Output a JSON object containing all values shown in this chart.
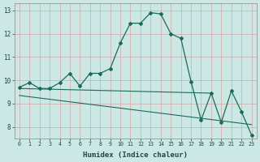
{
  "title": "",
  "xlabel": "Humidex (Indice chaleur)",
  "bg_color": "#cce8e5",
  "grid_color_h": "#e8c8c8",
  "grid_color_v": "#e8c8c8",
  "line_color": "#1a6b5a",
  "xlim": [
    -0.5,
    23.5
  ],
  "ylim": [
    7.5,
    13.3
  ],
  "xticks": [
    0,
    1,
    2,
    3,
    4,
    5,
    6,
    7,
    8,
    9,
    10,
    11,
    12,
    13,
    14,
    15,
    16,
    17,
    18,
    19,
    20,
    21,
    22,
    23
  ],
  "yticks": [
    8,
    9,
    10,
    11,
    12,
    13
  ],
  "line1_x": [
    0,
    1,
    2,
    3,
    4,
    5,
    6,
    7,
    8,
    9,
    10,
    11,
    12,
    13,
    14,
    15,
    16,
    17,
    18,
    19,
    20,
    21,
    22,
    23
  ],
  "line1_y": [
    9.7,
    9.9,
    9.65,
    9.65,
    9.9,
    10.3,
    9.75,
    10.3,
    10.3,
    10.5,
    11.6,
    12.45,
    12.45,
    12.9,
    12.85,
    12.0,
    11.8,
    9.95,
    8.3,
    9.45,
    8.2,
    9.55,
    8.65,
    7.65
  ],
  "line2_x": [
    0,
    19
  ],
  "line2_y": [
    9.65,
    9.45
  ],
  "line3_x": [
    0,
    23
  ],
  "line3_y": [
    9.35,
    8.1
  ]
}
